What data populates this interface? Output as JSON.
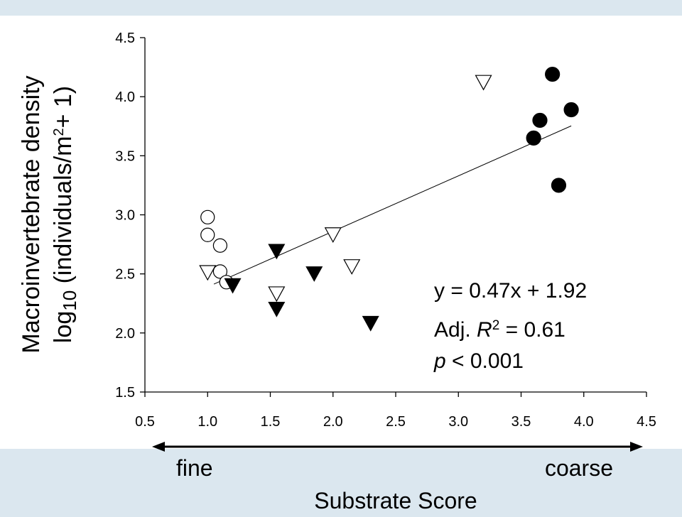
{
  "chart_data": {
    "type": "scatter",
    "xlabel": "Substrate Score",
    "ylabel_line1": "Macroinvertebrate density",
    "ylabel_line2": {
      "prefix": "log",
      "sub": "10",
      "open": " (individuals/m",
      "sup": "2",
      "close": "+ 1)"
    },
    "xlim": [
      0.5,
      4.5
    ],
    "ylim": [
      1.5,
      4.5
    ],
    "x_ticks": [
      "0.5",
      "1.0",
      "1.5",
      "2.0",
      "2.5",
      "3.0",
      "3.5",
      "4.0",
      "4.5"
    ],
    "y_ticks": [
      "1.5",
      "2.0",
      "2.5",
      "3.0",
      "3.5",
      "4.0",
      "4.5"
    ],
    "series": [
      {
        "marker": "open-circle",
        "color": "#000000",
        "points": [
          [
            1.0,
            2.98
          ],
          [
            1.0,
            2.83
          ],
          [
            1.1,
            2.74
          ],
          [
            1.1,
            2.52
          ],
          [
            1.15,
            2.43
          ]
        ]
      },
      {
        "marker": "open-triangle-down",
        "color": "#000000",
        "points": [
          [
            1.0,
            2.51
          ],
          [
            1.55,
            2.33
          ],
          [
            2.0,
            2.83
          ],
          [
            2.15,
            2.56
          ],
          [
            3.2,
            4.12
          ]
        ]
      },
      {
        "marker": "filled-triangle-down",
        "color": "#000000",
        "points": [
          [
            1.2,
            2.4
          ],
          [
            1.55,
            2.69
          ],
          [
            1.55,
            2.2
          ],
          [
            1.85,
            2.5
          ],
          [
            2.3,
            2.08
          ]
        ]
      },
      {
        "marker": "filled-circle",
        "color": "#000000",
        "points": [
          [
            3.6,
            3.65
          ],
          [
            3.65,
            3.8
          ],
          [
            3.75,
            4.19
          ],
          [
            3.8,
            3.25
          ],
          [
            3.9,
            3.89
          ]
        ]
      }
    ],
    "fit_line": {
      "slope": 0.47,
      "intercept": 1.92,
      "x_range": [
        1.05,
        3.9
      ]
    },
    "annotations": {
      "equation": "y = 0.47x + 1.92",
      "adj_prefix": "Adj. ",
      "r_symbol": "R",
      "r_sup": "2",
      "r_value": " = 0.61",
      "p_symbol": "p",
      "p_value": " < 0.001"
    },
    "grid": false,
    "legend": "none"
  },
  "axis_arrow": {
    "left_label": "fine",
    "right_label": "coarse"
  },
  "colors": {
    "panel_background": "#ffffff",
    "page_background": "#dbe7ef",
    "ink": "#000000"
  }
}
